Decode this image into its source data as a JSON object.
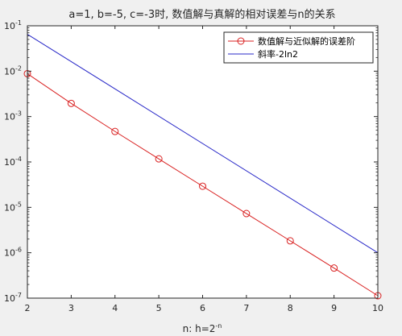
{
  "chart_data": {
    "type": "line",
    "title": "a=1, b=-5, c=-3时, 数值解与真解的相对误差与n的关系",
    "xlabel": {
      "base": "n: h=2",
      "superscript": "-n"
    },
    "ylabel": "",
    "x": [
      2,
      3,
      4,
      5,
      6,
      7,
      8,
      9,
      10
    ],
    "xlim": [
      2,
      10
    ],
    "ylim": [
      1e-07,
      0.1
    ],
    "yscale": "log",
    "x_ticks": [
      "2",
      "3",
      "4",
      "5",
      "6",
      "7",
      "8",
      "9",
      "10"
    ],
    "y_ticks": [
      {
        "value": 0.1,
        "base": "10",
        "exponent": "-1"
      },
      {
        "value": 0.01,
        "base": "10",
        "exponent": "-2"
      },
      {
        "value": 0.001,
        "base": "10",
        "exponent": "-3"
      },
      {
        "value": 0.0001,
        "base": "10",
        "exponent": "-4"
      },
      {
        "value": 1e-05,
        "base": "10",
        "exponent": "-5"
      },
      {
        "value": 1e-06,
        "base": "10",
        "exponent": "-6"
      },
      {
        "value": 1e-07,
        "base": "10",
        "exponent": "-7"
      }
    ],
    "grid": false,
    "legend_position": "top-right",
    "series": [
      {
        "name": "数值解与近似解的误差阶",
        "color": "#d92121",
        "marker": "circle",
        "values": [
          0.0088,
          0.00195,
          0.00047,
          0.000117,
          2.92e-05,
          7.3e-06,
          1.83e-06,
          4.6e-07,
          1.13e-07
        ]
      },
      {
        "name": "斜率-2ln2",
        "color": "#2828c8",
        "marker": "none",
        "x": [
          2,
          10
        ],
        "values": [
          0.065,
          1e-06
        ]
      }
    ]
  }
}
